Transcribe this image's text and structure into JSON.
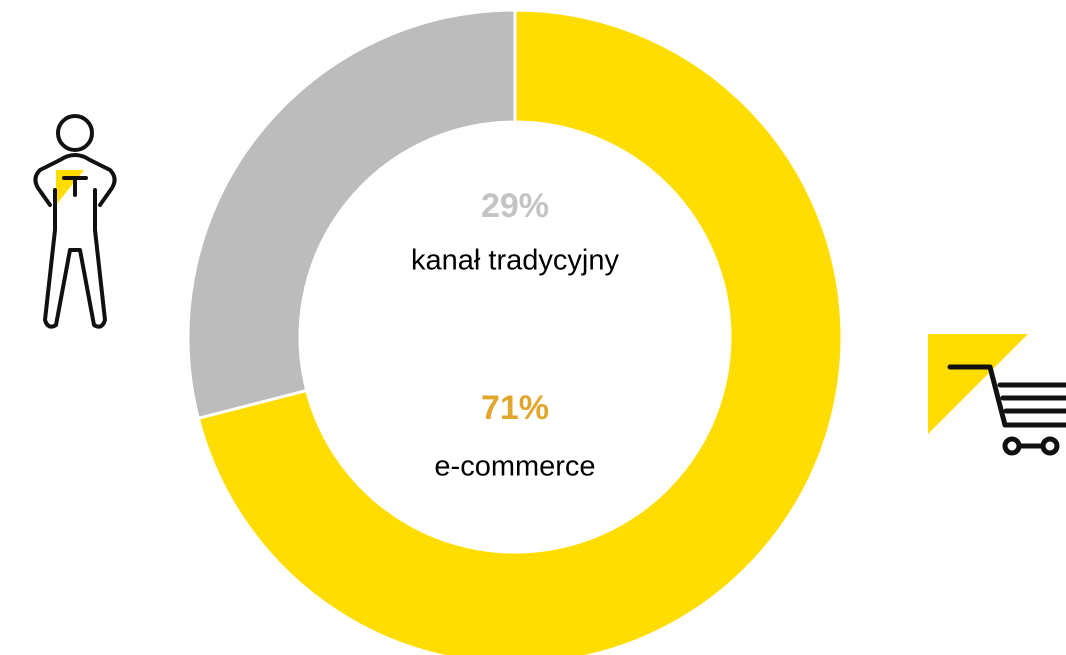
{
  "chart_data": {
    "type": "donut",
    "categories": [
      "e-commerce",
      "kanał tradycyjny"
    ],
    "values": [
      71,
      29
    ],
    "value_labels": [
      "71%",
      "29%"
    ],
    "colors": [
      "#ffdd00",
      "#bcbcbc"
    ],
    "label_colors": [
      "#e3a62c",
      "#c4c4c4"
    ]
  }
}
